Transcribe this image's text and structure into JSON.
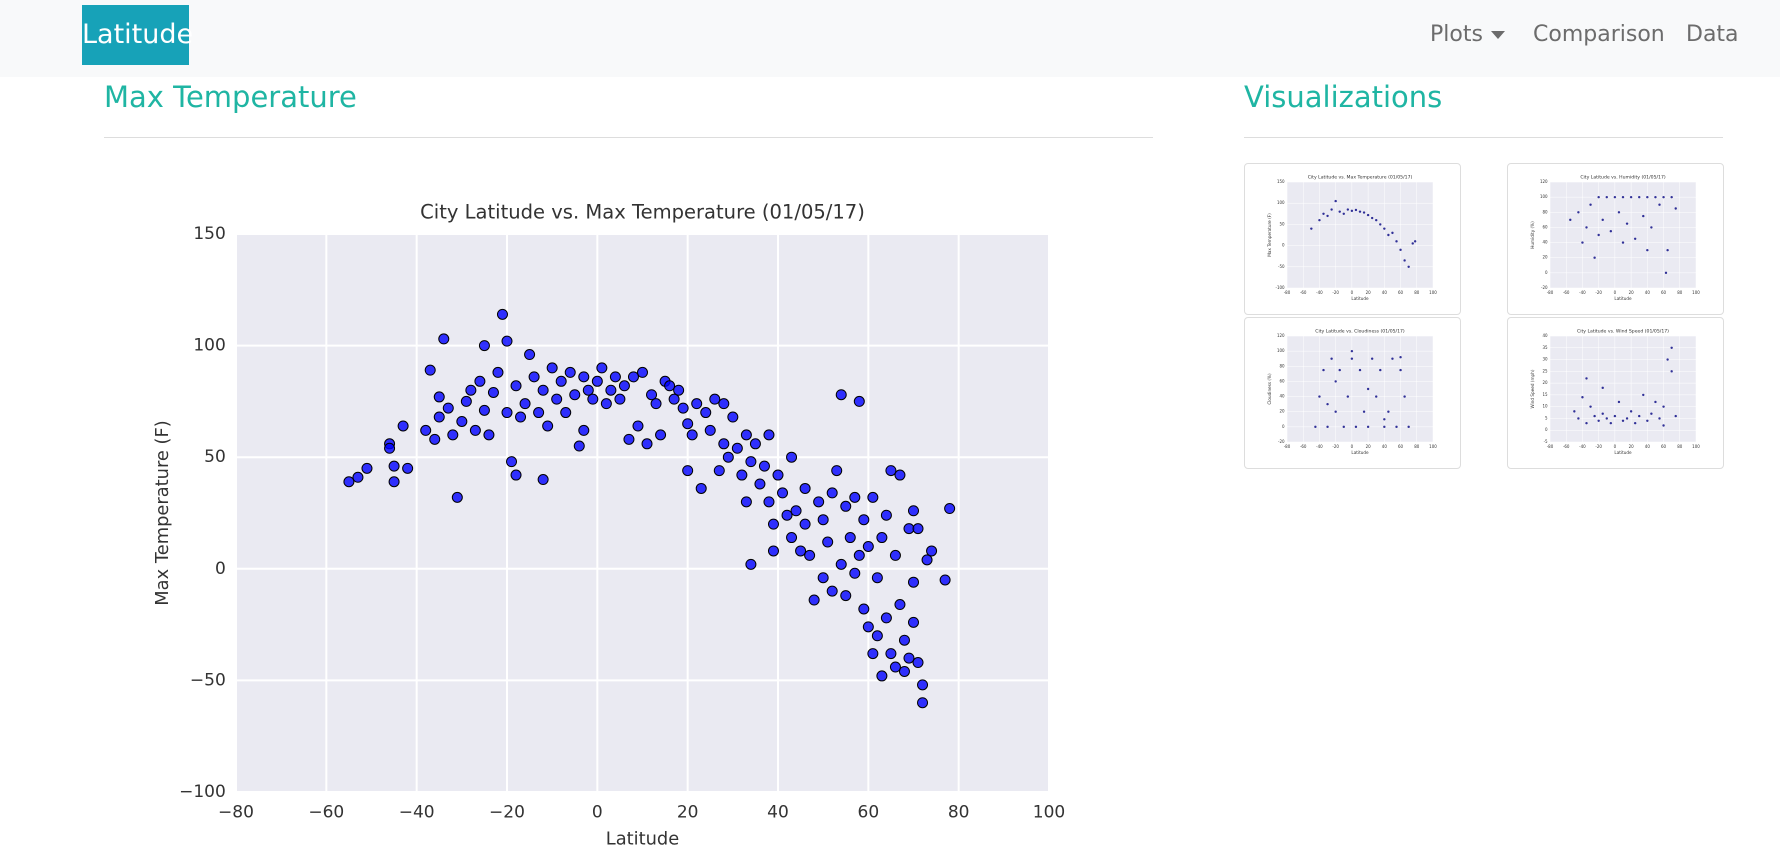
{
  "navbar": {
    "brand": "Latitude",
    "links": [
      "Plots",
      "Comparison",
      "Data"
    ]
  },
  "main": {
    "heading": "Max Temperature",
    "chart_data": {
      "type": "scatter",
      "title": "City Latitude vs. Max Temperature (01/05/17)",
      "x_label": "Latitude",
      "y_label": "Max Temperature (F)",
      "color": "#0000ff",
      "edgecolor": "#000000",
      "grid": true,
      "xlim": [
        -80,
        100
      ],
      "ylim": [
        -100,
        150
      ],
      "xticks": [
        {
          "value": -80,
          "label": "−80"
        },
        {
          "value": -60,
          "label": "−60"
        },
        {
          "value": -40,
          "label": "−40"
        },
        {
          "value": -20,
          "label": "−20"
        },
        0,
        20,
        40,
        60,
        80,
        100
      ],
      "yticks": [
        {
          "value": -100,
          "label": "−100"
        },
        {
          "value": -50,
          "label": "−50"
        },
        0,
        50,
        100,
        150
      ],
      "x": [
        -55,
        -53,
        -51,
        -46,
        -46,
        -45,
        -45,
        -43,
        -42,
        -38,
        -37,
        -36,
        -35,
        -35,
        -34,
        -33,
        -32,
        -31,
        -30,
        -29,
        -28,
        -27,
        -26,
        -25,
        -25,
        -24,
        -23,
        -22,
        -21,
        -20,
        -20,
        -19,
        -18,
        -18,
        -17,
        -16,
        -15,
        -14,
        -13,
        -12,
        -12,
        -11,
        -10,
        -9,
        -8,
        -7,
        -6,
        -5,
        -4,
        -3,
        -3,
        -2,
        -1,
        0,
        1,
        2,
        3,
        4,
        5,
        6,
        7,
        8,
        9,
        10,
        11,
        12,
        13,
        14,
        15,
        16,
        17,
        18,
        19,
        20,
        20,
        21,
        22,
        23,
        24,
        25,
        26,
        27,
        28,
        28,
        29,
        30,
        31,
        32,
        33,
        33,
        34,
        34,
        35,
        36,
        37,
        38,
        38,
        39,
        39,
        40,
        41,
        42,
        43,
        43,
        44,
        45,
        46,
        46,
        47,
        48,
        49,
        50,
        50,
        51,
        52,
        52,
        53,
        54,
        54,
        55,
        55,
        56,
        57,
        57,
        58,
        58,
        59,
        59,
        60,
        60,
        61,
        61,
        62,
        62,
        63,
        63,
        64,
        64,
        65,
        65,
        66,
        66,
        67,
        67,
        68,
        68,
        69,
        69,
        70,
        70,
        70,
        71,
        71,
        72,
        72,
        73,
        74,
        77,
        78
      ],
      "values": [
        39,
        41,
        45,
        56,
        54,
        46,
        39,
        64,
        45,
        62,
        89,
        58,
        68,
        77,
        103,
        72,
        60,
        32,
        66,
        75,
        80,
        62,
        84,
        100,
        71,
        60,
        79,
        88,
        114,
        102,
        70,
        48,
        42,
        82,
        68,
        74,
        96,
        86,
        70,
        40,
        80,
        64,
        90,
        76,
        84,
        70,
        88,
        78,
        55,
        62,
        86,
        80,
        76,
        84,
        90,
        74,
        80,
        86,
        76,
        82,
        58,
        86,
        64,
        88,
        56,
        78,
        74,
        60,
        84,
        82,
        76,
        80,
        72,
        44,
        65,
        60,
        74,
        36,
        70,
        62,
        76,
        44,
        56,
        74,
        50,
        68,
        54,
        42,
        60,
        30,
        48,
        2,
        56,
        38,
        46,
        30,
        60,
        20,
        8,
        42,
        34,
        24,
        50,
        14,
        26,
        8,
        36,
        20,
        6,
        -14,
        30,
        22,
        -4,
        12,
        34,
        -10,
        44,
        78,
        2,
        28,
        -12,
        14,
        -2,
        32,
        75,
        6,
        -18,
        22,
        -26,
        10,
        -38,
        32,
        -4,
        -30,
        -48,
        14,
        -22,
        24,
        -38,
        44,
        -44,
        6,
        -16,
        42,
        -32,
        -46,
        18,
        -40,
        26,
        -24,
        -6,
        -42,
        18,
        -52,
        -60,
        4,
        8,
        -5,
        27
      ]
    }
  },
  "sidebar": {
    "heading": "Visualizations",
    "thumbnails": [
      {
        "chart_data": {
          "type": "scatter",
          "title": "City Latitude vs. Max Temperature (01/05/17)",
          "x_label": "Latitude",
          "y_label": "Max Temperature (F)",
          "color": "#000080",
          "grid": true,
          "xlim": [
            -80,
            100
          ],
          "ylim": [
            -100,
            150
          ],
          "xticks": [
            -80,
            -60,
            -40,
            -20,
            0,
            20,
            40,
            60,
            80,
            100
          ],
          "yticks": [
            -100,
            -50,
            0,
            50,
            100,
            150
          ],
          "x": [
            -50,
            -40,
            -35,
            -30,
            -25,
            -20,
            -15,
            -10,
            -5,
            0,
            5,
            10,
            15,
            20,
            25,
            30,
            35,
            40,
            45,
            50,
            55,
            60,
            65,
            70,
            75,
            78
          ],
          "values": [
            40,
            60,
            75,
            70,
            85,
            105,
            80,
            75,
            85,
            82,
            84,
            80,
            78,
            72,
            65,
            60,
            50,
            40,
            25,
            30,
            10,
            -10,
            -35,
            -50,
            5,
            10
          ]
        }
      },
      {
        "chart_data": {
          "type": "scatter",
          "title": "City Latitude vs. Humidity (01/05/17)",
          "x_label": "Latitude",
          "y_label": "Humidity (%)",
          "color": "#000080",
          "grid": true,
          "xlim": [
            -80,
            100
          ],
          "ylim": [
            -20,
            120
          ],
          "xticks": [
            -80,
            -60,
            -40,
            -20,
            0,
            20,
            40,
            60,
            80,
            100
          ],
          "yticks": [
            -20,
            0,
            20,
            40,
            60,
            80,
            100,
            120
          ],
          "x": [
            -55,
            -45,
            -40,
            -35,
            -30,
            -25,
            -20,
            -15,
            -10,
            -5,
            0,
            5,
            10,
            15,
            20,
            25,
            30,
            35,
            40,
            45,
            50,
            55,
            60,
            65,
            70,
            75,
            -20,
            10,
            40,
            63
          ],
          "values": [
            70,
            80,
            40,
            60,
            90,
            20,
            100,
            70,
            100,
            55,
            100,
            80,
            100,
            65,
            100,
            45,
            100,
            75,
            100,
            60,
            100,
            90,
            100,
            30,
            100,
            85,
            50,
            40,
            30,
            0
          ]
        }
      },
      {
        "chart_data": {
          "type": "scatter",
          "title": "City Latitude vs. Cloudiness (01/05/17)",
          "x_label": "Latitude",
          "y_label": "Cloudiness (%)",
          "color": "#000080",
          "grid": true,
          "xlim": [
            -80,
            100
          ],
          "ylim": [
            -20,
            120
          ],
          "xticks": [
            -80,
            -60,
            -40,
            -20,
            0,
            20,
            40,
            60,
            80,
            100
          ],
          "yticks": [
            -20,
            0,
            20,
            40,
            60,
            80,
            100,
            120
          ],
          "x": [
            -45,
            -40,
            -35,
            -30,
            -25,
            -20,
            -15,
            -10,
            -5,
            0,
            5,
            10,
            15,
            20,
            25,
            30,
            35,
            40,
            45,
            50,
            55,
            60,
            65,
            70,
            -20,
            0,
            20,
            40,
            60,
            -30
          ],
          "values": [
            0,
            40,
            75,
            0,
            90,
            20,
            75,
            0,
            40,
            90,
            0,
            75,
            20,
            0,
            90,
            40,
            75,
            0,
            20,
            90,
            0,
            75,
            40,
            0,
            60,
            100,
            50,
            10,
            92,
            30
          ]
        }
      },
      {
        "chart_data": {
          "type": "scatter",
          "title": "City Latitude vs. Wind Speed (01/05/17)",
          "x_label": "Latitude",
          "y_label": "Wind Speed (mph)",
          "color": "#000080",
          "grid": true,
          "xlim": [
            -80,
            100
          ],
          "ylim": [
            -5,
            40
          ],
          "xticks": [
            -80,
            -60,
            -40,
            -20,
            0,
            20,
            40,
            60,
            80,
            100
          ],
          "yticks": [
            -5,
            0,
            5,
            10,
            15,
            20,
            25,
            30,
            35,
            40
          ],
          "x": [
            -50,
            -45,
            -40,
            -35,
            -30,
            -25,
            -20,
            -15,
            -10,
            -5,
            0,
            5,
            10,
            15,
            20,
            25,
            30,
            35,
            40,
            45,
            50,
            55,
            60,
            65,
            70,
            75,
            -35,
            60,
            70,
            -15
          ],
          "values": [
            8,
            5,
            14,
            22,
            10,
            6,
            4,
            7,
            5,
            3,
            6,
            12,
            4,
            5,
            8,
            3,
            6,
            15,
            4,
            7,
            12,
            5,
            10,
            30,
            25,
            6,
            3,
            2,
            35,
            18
          ]
        }
      }
    ]
  }
}
